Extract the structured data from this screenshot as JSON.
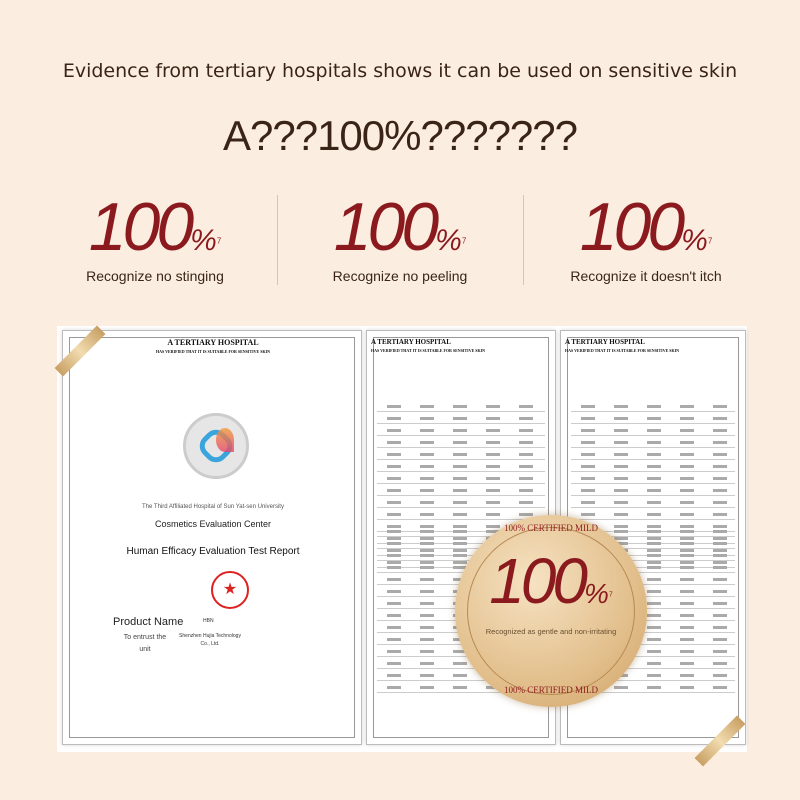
{
  "header": {
    "subtitle": "Evidence from tertiary hospitals shows it can be used on sensitive skin",
    "headline": "A???100%???????"
  },
  "stats": [
    {
      "value": "100",
      "unit": "%",
      "note": "7",
      "label": "Recognize no stinging"
    },
    {
      "value": "100",
      "unit": "%",
      "note": "7",
      "label": "Recognize no peeling"
    },
    {
      "value": "100",
      "unit": "%",
      "note": "7",
      "label": "Recognize it doesn't itch"
    }
  ],
  "colors": {
    "accent": "#8b1a1f",
    "text": "#3a2418",
    "background": "#fbeee0",
    "seal": "#e2bf8c"
  },
  "documents": {
    "header_title": "A TERTIARY HOSPITAL",
    "header_sub": "HAS VERIFIED THAT IT IS SUITABLE FOR SENSITIVE SKIN",
    "cover": {
      "hospital": "The Third Affiliated Hospital of Sun Yat-sen University",
      "center": "Cosmetics Evaluation Center",
      "report": "Human Efficacy Evaluation Test Report",
      "product_label": "Product Name",
      "product_value": "HBN",
      "entrust_label": "To entrust the unit",
      "entrust_value": "Shenzhen Hujia Technology Co., Ltd."
    }
  },
  "seal": {
    "top_arc": "100% CERTIFIED MILD",
    "bottom_arc": "100% CERTIFIED MILD",
    "value": "100",
    "unit": "%",
    "note": "7",
    "label": "Recognized as gentle and non-irritating"
  }
}
